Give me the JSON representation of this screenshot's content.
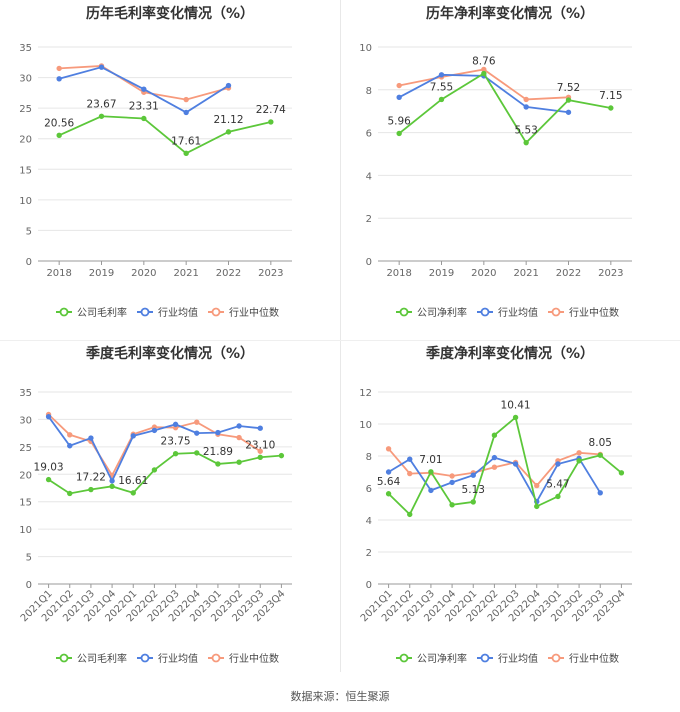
{
  "footer": "数据来源：恒生聚源",
  "colors": {
    "company": "#5cc73a",
    "industry_avg": "#4f7fe0",
    "industry_median": "#f79a7c"
  },
  "chart_data": [
    {
      "type": "line",
      "title": "历年毛利率变化情况（%）",
      "categories": [
        "2018",
        "2019",
        "2020",
        "2021",
        "2022",
        "2023"
      ],
      "ylim": [
        0,
        35
      ],
      "yticks": [
        0,
        5,
        10,
        15,
        20,
        25,
        30,
        35
      ],
      "grid": true,
      "legend_position": "bottom",
      "label_series": 0,
      "series": [
        {
          "name": "公司毛利率",
          "color": "#5cc73a",
          "values": [
            20.56,
            23.67,
            23.31,
            17.61,
            21.12,
            22.74
          ],
          "labels": [
            "20.56",
            "23.67",
            "23.31",
            "17.61",
            "21.12",
            "22.74"
          ]
        },
        {
          "name": "行业均值",
          "color": "#4f7fe0",
          "values": [
            29.8,
            31.7,
            28.1,
            24.3,
            28.7,
            null
          ]
        },
        {
          "name": "行业中位数",
          "color": "#f79a7c",
          "values": [
            31.5,
            31.9,
            27.6,
            26.4,
            28.3,
            null
          ]
        }
      ]
    },
    {
      "type": "line",
      "title": "历年净利率变化情况（%）",
      "categories": [
        "2018",
        "2019",
        "2020",
        "2021",
        "2022",
        "2023"
      ],
      "ylim": [
        0,
        10
      ],
      "yticks": [
        0,
        2,
        4,
        6,
        8,
        10
      ],
      "grid": true,
      "legend_position": "bottom",
      "label_series": 0,
      "series": [
        {
          "name": "公司净利率",
          "color": "#5cc73a",
          "values": [
            5.96,
            7.55,
            8.76,
            5.53,
            7.52,
            7.15
          ],
          "labels": [
            "5.96",
            "7.55",
            "8.76",
            "5.53",
            "7.52",
            "7.15"
          ]
        },
        {
          "name": "行业均值",
          "color": "#4f7fe0",
          "values": [
            7.65,
            8.7,
            8.65,
            7.2,
            6.95,
            null
          ]
        },
        {
          "name": "行业中位数",
          "color": "#f79a7c",
          "values": [
            8.2,
            8.6,
            8.95,
            7.55,
            7.65,
            null
          ]
        }
      ]
    },
    {
      "type": "line",
      "title": "季度毛利率变化情况（%）",
      "categories": [
        "2021Q1",
        "2021Q2",
        "2021Q3",
        "2021Q4",
        "2022Q1",
        "2022Q2",
        "2022Q3",
        "2022Q4",
        "2023Q1",
        "2023Q2",
        "2023Q3",
        "2023Q4"
      ],
      "ylim": [
        0,
        35
      ],
      "yticks": [
        0,
        5,
        10,
        15,
        20,
        25,
        30,
        35
      ],
      "grid": true,
      "legend_position": "bottom",
      "label_series": 0,
      "series": [
        {
          "name": "公司毛利率",
          "color": "#5cc73a",
          "values": [
            19.03,
            16.5,
            17.22,
            17.8,
            16.61,
            20.8,
            23.75,
            23.9,
            21.89,
            22.2,
            23.1,
            23.4
          ],
          "labels": [
            "19.03",
            "",
            "17.22",
            "",
            "16.61",
            "",
            "23.75",
            "",
            "21.89",
            "",
            "23.10",
            ""
          ]
        },
        {
          "name": "行业均值",
          "color": "#4f7fe0",
          "values": [
            30.5,
            25.2,
            26.6,
            18.8,
            27.0,
            28.0,
            29.1,
            27.5,
            27.6,
            28.8,
            28.4,
            null
          ]
        },
        {
          "name": "行业中位数",
          "color": "#f79a7c",
          "values": [
            30.9,
            27.2,
            26.0,
            19.8,
            27.3,
            28.6,
            28.5,
            29.5,
            27.3,
            26.7,
            24.2,
            null
          ]
        }
      ]
    },
    {
      "type": "line",
      "title": "季度净利率变化情况（%）",
      "categories": [
        "2021Q1",
        "2021Q2",
        "2021Q3",
        "2021Q4",
        "2022Q1",
        "2022Q2",
        "2022Q3",
        "2022Q4",
        "2023Q1",
        "2023Q2",
        "2023Q3",
        "2023Q4"
      ],
      "ylim": [
        0,
        12
      ],
      "yticks": [
        0,
        2,
        4,
        6,
        8,
        10,
        12
      ],
      "grid": true,
      "legend_position": "bottom",
      "label_series": 0,
      "series": [
        {
          "name": "公司净利率",
          "color": "#5cc73a",
          "values": [
            5.64,
            4.35,
            7.01,
            4.95,
            5.13,
            9.3,
            10.41,
            4.85,
            5.47,
            7.7,
            8.05,
            6.95
          ],
          "labels": [
            "5.64",
            "",
            "7.01",
            "",
            "5.13",
            "",
            "10.41",
            "",
            "5.47",
            "",
            "8.05",
            ""
          ]
        },
        {
          "name": "行业均值",
          "color": "#4f7fe0",
          "values": [
            7.0,
            7.8,
            5.85,
            6.35,
            6.8,
            7.9,
            7.5,
            5.15,
            7.5,
            7.85,
            5.7,
            null
          ]
        },
        {
          "name": "行业中位数",
          "color": "#f79a7c",
          "values": [
            8.45,
            6.9,
            6.95,
            6.75,
            6.95,
            7.3,
            7.6,
            6.15,
            7.7,
            8.2,
            8.1,
            null
          ]
        }
      ]
    }
  ]
}
